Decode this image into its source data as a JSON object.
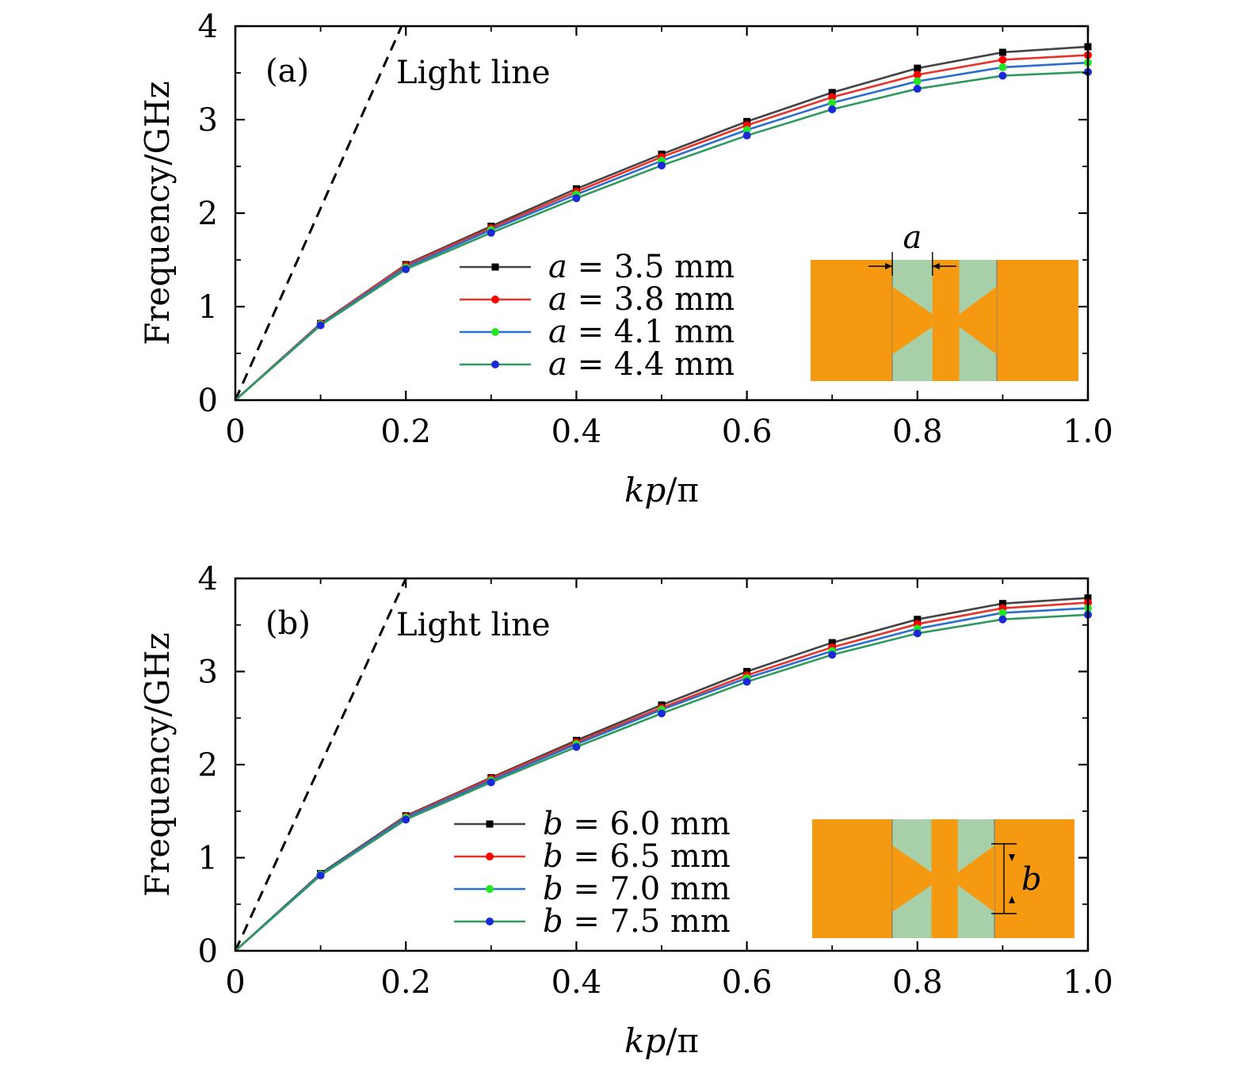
{
  "chart_data": [
    {
      "type": "line",
      "panel_label": "(a)",
      "xlabel": "kp/π",
      "xlabel_parts": {
        "italic": "kp",
        "rest": "/π"
      },
      "ylabel": "Frequency/GHz",
      "xlim": [
        0,
        1.0
      ],
      "ylim": [
        0,
        4
      ],
      "xticks": [
        "0",
        "0.2",
        "0.4",
        "0.6",
        "0.8",
        "1.0"
      ],
      "xtick_values": [
        0,
        0.2,
        0.4,
        0.6,
        0.8,
        1.0
      ],
      "yticks": [
        "0",
        "1",
        "2",
        "3",
        "4"
      ],
      "ytick_values": [
        0,
        1,
        2,
        3,
        4
      ],
      "grid": false,
      "legend_position": "lower-center",
      "annotation": "Light line",
      "light_line": {
        "x": [
          0,
          0.195
        ],
        "y": [
          0,
          4
        ],
        "style": "dashed",
        "color": "#000000"
      },
      "x": [
        0,
        0.1,
        0.2,
        0.3,
        0.4,
        0.5,
        0.6,
        0.7,
        0.8,
        0.9,
        1.0
      ],
      "series": [
        {
          "name": "a = 3.5 mm",
          "var": "a",
          "rest": " = 3.5 mm",
          "color": "#444444",
          "marker_color": "#000000",
          "marker": "square",
          "values": [
            0,
            0.82,
            1.45,
            1.86,
            2.26,
            2.63,
            2.98,
            3.29,
            3.55,
            3.72,
            3.78
          ]
        },
        {
          "name": "a = 3.8 mm",
          "var": "a",
          "rest": " = 3.8 mm",
          "color": "#e8332a",
          "marker_color": "#ff0000",
          "marker": "circle",
          "values": [
            0,
            0.82,
            1.44,
            1.84,
            2.23,
            2.6,
            2.94,
            3.24,
            3.48,
            3.64,
            3.69
          ]
        },
        {
          "name": "a = 4.1 mm",
          "var": "a",
          "rest": " = 4.1 mm",
          "color": "#2a6ed0",
          "marker_color": "#22e622",
          "marker": "circle",
          "values": [
            0,
            0.81,
            1.42,
            1.82,
            2.2,
            2.56,
            2.89,
            3.18,
            3.41,
            3.56,
            3.61
          ]
        },
        {
          "name": "a = 4.4 mm",
          "var": "a",
          "rest": " = 4.4 mm",
          "color": "#2e9a5e",
          "marker_color": "#1a2ad8",
          "marker": "circle",
          "values": [
            0,
            0.8,
            1.4,
            1.79,
            2.16,
            2.51,
            2.83,
            3.11,
            3.33,
            3.47,
            3.51
          ]
        }
      ],
      "inset": {
        "label": "a",
        "orange": "#f59a10",
        "green": "#a8d0a8"
      }
    },
    {
      "type": "line",
      "panel_label": "(b)",
      "xlabel": "kp/π",
      "xlabel_parts": {
        "italic": "kp",
        "rest": "/π"
      },
      "ylabel": "Frequency/GHz",
      "xlim": [
        0,
        1.0
      ],
      "ylim": [
        0,
        4
      ],
      "xticks": [
        "0",
        "0.2",
        "0.4",
        "0.6",
        "0.8",
        "1.0"
      ],
      "xtick_values": [
        0,
        0.2,
        0.4,
        0.6,
        0.8,
        1.0
      ],
      "yticks": [
        "0",
        "1",
        "2",
        "3",
        "4"
      ],
      "ytick_values": [
        0,
        1,
        2,
        3,
        4
      ],
      "grid": false,
      "legend_position": "lower-center",
      "annotation": "Light line",
      "light_line": {
        "x": [
          0,
          0.2
        ],
        "y": [
          0,
          4
        ],
        "style": "dashed",
        "color": "#000000"
      },
      "x": [
        0,
        0.1,
        0.2,
        0.3,
        0.4,
        0.5,
        0.6,
        0.7,
        0.8,
        0.9,
        1.0
      ],
      "series": [
        {
          "name": "b = 6.0 mm",
          "var": "b",
          "rest": " = 6.0 mm",
          "color": "#444444",
          "marker_color": "#000000",
          "marker": "square",
          "values": [
            0,
            0.83,
            1.45,
            1.86,
            2.26,
            2.64,
            3.0,
            3.31,
            3.56,
            3.73,
            3.79
          ]
        },
        {
          "name": "b = 6.5 mm",
          "var": "b",
          "rest": " = 6.5 mm",
          "color": "#e8332a",
          "marker_color": "#ff0000",
          "marker": "circle",
          "values": [
            0,
            0.82,
            1.44,
            1.85,
            2.24,
            2.61,
            2.96,
            3.26,
            3.51,
            3.68,
            3.74
          ]
        },
        {
          "name": "b = 7.0 mm",
          "var": "b",
          "rest": " = 7.0 mm",
          "color": "#2a6ed0",
          "marker_color": "#22e622",
          "marker": "circle",
          "values": [
            0,
            0.82,
            1.43,
            1.83,
            2.22,
            2.59,
            2.93,
            3.22,
            3.46,
            3.63,
            3.68
          ]
        },
        {
          "name": "b = 7.5 mm",
          "var": "b",
          "rest": " = 7.5 mm",
          "color": "#2e9a5e",
          "marker_color": "#1a2ad8",
          "marker": "circle",
          "values": [
            0,
            0.81,
            1.41,
            1.81,
            2.19,
            2.55,
            2.89,
            3.18,
            3.41,
            3.56,
            3.61
          ]
        }
      ],
      "inset": {
        "label": "b",
        "orange": "#f59a10",
        "green": "#a8d0a8"
      }
    }
  ]
}
